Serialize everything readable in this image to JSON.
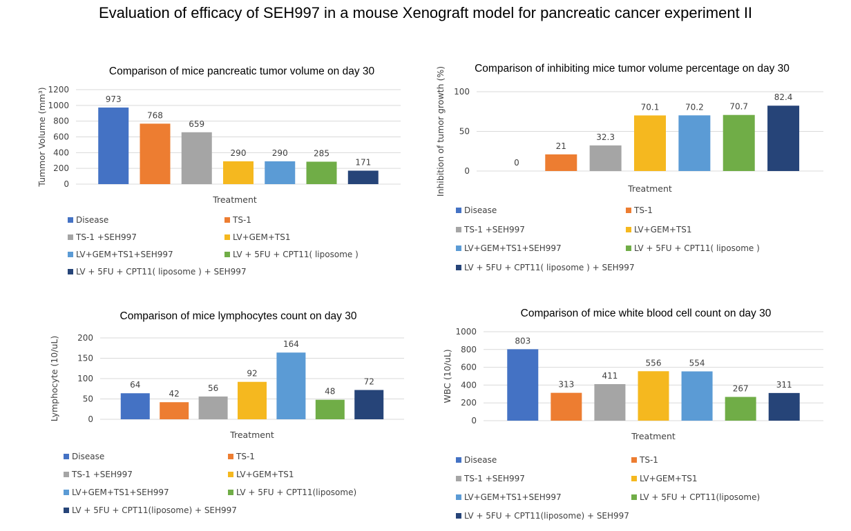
{
  "page": {
    "title": "Evaluation of efficacy of SEH997 in a mouse Xenograft model for pancreatic cancer experiment II"
  },
  "legend_items": [
    {
      "label": "Disease",
      "color": "#4472c4"
    },
    {
      "label": "TS-1",
      "color": "#ed7d31"
    },
    {
      "label": "TS-1 +SEH997",
      "color": "#a5a5a5"
    },
    {
      "label": "LV+GEM+TS1",
      "color": "#f5b81f"
    },
    {
      "label": "LV+GEM+TS1+SEH997",
      "color": "#5b9bd5"
    },
    {
      "label": "LV + 5FU + CPT11( liposome )",
      "color": "#70ad47"
    },
    {
      "label": "LV + 5FU + CPT11( liposome ) + SEH997",
      "color": "#264478"
    }
  ],
  "legend_items_alt": [
    "Disease",
    "TS-1",
    "TS-1 +SEH997",
    "LV+GEM+TS1",
    "LV+GEM+TS1+SEH997",
    "LV + 5FU + CPT11(liposome)",
    "LV + 5FU + CPT11(liposome) + SEH997"
  ],
  "chart_data": [
    {
      "type": "bar",
      "title": "Comparison of mice pancreatic tumor volume on day 30",
      "xlabel": "Treatment",
      "ylabel": "Tummor Volume (mm³)",
      "ylim": [
        0,
        1200
      ],
      "yticks": [
        "0",
        "200",
        "400",
        "600",
        "800",
        "1000",
        "1200"
      ],
      "values": [
        973,
        768,
        659,
        290,
        290,
        285,
        171
      ],
      "labels": [
        "973",
        "768",
        "659",
        "290",
        "290",
        "285",
        "171"
      ],
      "grid": true,
      "legend": "bottom"
    },
    {
      "type": "bar",
      "title": "Comparison of inhibiting mice tumor volume percentage on day 30",
      "xlabel": "Treatment",
      "ylabel": "Inhibition of tumor growth (%)",
      "ylim": [
        0,
        100
      ],
      "yticks": [
        "0",
        "50",
        "100"
      ],
      "values": [
        0,
        21,
        32.3,
        70.1,
        70.2,
        70.7,
        82.4
      ],
      "labels": [
        "0",
        "21",
        "32.3",
        "70.1",
        "70.2",
        "70.7",
        "82.4"
      ],
      "grid": true,
      "legend": "bottom"
    },
    {
      "type": "bar",
      "title": "Comparison of mice lymphocytes count on day 30",
      "xlabel": "Treatment",
      "ylabel": "Lymphocyte  (10/uL)",
      "ylim": [
        0,
        200
      ],
      "yticks": [
        "0",
        "50",
        "100",
        "150",
        "200"
      ],
      "values": [
        64,
        42,
        56,
        92,
        164,
        48,
        72
      ],
      "labels": [
        "64",
        "42",
        "56",
        "92",
        "164",
        "48",
        "72"
      ],
      "grid": true,
      "legend": "bottom"
    },
    {
      "type": "bar",
      "title": "Comparison of mice white blood cell count on day 30",
      "xlabel": "Treatment",
      "ylabel": "WBC (10/uL)",
      "ylim": [
        0,
        1000
      ],
      "yticks": [
        "0",
        "200",
        "400",
        "600",
        "800",
        "1000"
      ],
      "values": [
        803,
        313,
        411,
        556,
        554,
        267,
        311
      ],
      "labels": [
        "803",
        "313",
        "411",
        "556",
        "554",
        "267",
        "311"
      ],
      "grid": true,
      "legend": "bottom"
    }
  ]
}
